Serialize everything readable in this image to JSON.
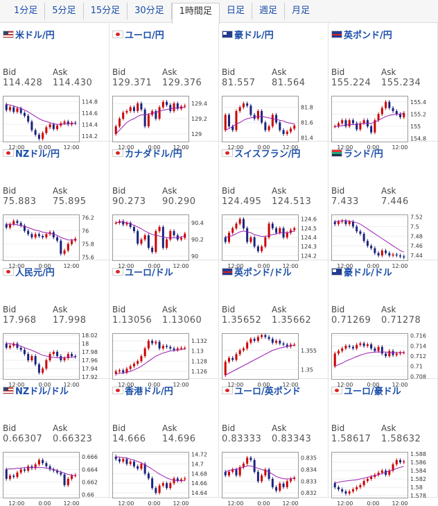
{
  "tabs": [
    {
      "label": "1分足",
      "active": false
    },
    {
      "label": "5分足",
      "active": false
    },
    {
      "label": "15分足",
      "active": false
    },
    {
      "label": "30分足",
      "active": false
    },
    {
      "label": "1時間足",
      "active": true
    },
    {
      "label": "日足",
      "active": false
    },
    {
      "label": "週足",
      "active": false
    },
    {
      "label": "月足",
      "active": false
    }
  ],
  "labels": {
    "bid": "Bid",
    "ask": "Ask"
  },
  "colors": {
    "up": "#cc0000",
    "down": "#1a237e",
    "ma": "#9b1fb0",
    "link": "#1a4ea8"
  },
  "pairs": [
    {
      "name": "米ドル/円",
      "flag": "us",
      "bid": "114.428",
      "ask": "114.430",
      "chart_data": {
        "type": "candlestick",
        "ylim": [
          114.1,
          114.9
        ],
        "yticks": [
          "114.8",
          "114.6",
          "114.4",
          "114.2"
        ],
        "xticks": [
          "12:00",
          "0:00",
          "12:00"
        ],
        "close": [
          114.65,
          114.7,
          114.62,
          114.68,
          114.6,
          114.55,
          114.45,
          114.3,
          114.22,
          114.15,
          114.25,
          114.35,
          114.4,
          114.32,
          114.38,
          114.42,
          114.45,
          114.4,
          114.43,
          114.42
        ],
        "ma": [
          114.75,
          114.74,
          114.72,
          114.7,
          114.68,
          114.65,
          114.62,
          114.58,
          114.54,
          114.5,
          114.47,
          114.45,
          114.43,
          114.41,
          114.4,
          114.4,
          114.41,
          114.41,
          114.42,
          114.42
        ]
      }
    },
    {
      "name": "ユーロ/円",
      "flag": "jp",
      "bid": "129.371",
      "ask": "129.376",
      "chart_data": {
        "type": "candlestick",
        "ylim": [
          128.9,
          129.5
        ],
        "yticks": [
          "129.4",
          "129.2",
          "129"
        ],
        "xticks": [
          "12:00",
          "0:00",
          "12:00"
        ],
        "close": [
          129.1,
          129.2,
          129.28,
          129.3,
          129.35,
          129.3,
          129.4,
          129.32,
          129.1,
          129.25,
          129.3,
          129.2,
          129.35,
          129.42,
          129.38,
          129.3,
          129.4,
          129.33,
          129.36,
          129.37
        ],
        "ma": [
          129.0,
          129.05,
          129.1,
          129.15,
          129.18,
          129.2,
          129.23,
          129.25,
          129.25,
          129.26,
          129.27,
          129.28,
          129.3,
          129.31,
          129.32,
          129.33,
          129.34,
          129.34,
          129.35,
          129.35
        ]
      }
    },
    {
      "name": "豪ドル/円",
      "flag": "au",
      "bid": "81.557",
      "ask": "81.564",
      "chart_data": {
        "type": "candlestick",
        "ylim": [
          81.35,
          81.95
        ],
        "yticks": [
          "81.8",
          "81.6",
          "81.4"
        ],
        "xticks": [
          "12:00",
          "0:00",
          "12:00"
        ],
        "close": [
          81.7,
          81.55,
          81.5,
          81.75,
          81.8,
          81.85,
          81.82,
          81.7,
          81.65,
          81.75,
          81.6,
          81.5,
          81.55,
          81.7,
          81.6,
          81.5,
          81.45,
          81.48,
          81.52,
          81.56
        ],
        "ma": [
          81.5,
          81.52,
          81.55,
          81.58,
          81.6,
          81.63,
          81.65,
          81.66,
          81.67,
          81.68,
          81.68,
          81.67,
          81.66,
          81.65,
          81.64,
          81.63,
          81.62,
          81.6,
          81.59,
          81.58
        ]
      }
    },
    {
      "name": "英ポンド/円",
      "flag": "gb",
      "bid": "155.224",
      "ask": "155.234",
      "chart_data": {
        "type": "candlestick",
        "ylim": [
          154.75,
          155.5
        ],
        "yticks": [
          "155.4",
          "155.2",
          "155",
          "154.8"
        ],
        "xticks": [
          "12:00",
          "0:00",
          "12:00"
        ],
        "close": [
          155.0,
          155.05,
          155.1,
          155.0,
          155.1,
          155.05,
          154.95,
          155.05,
          155.1,
          155.0,
          154.9,
          155.1,
          155.2,
          155.3,
          155.4,
          155.3,
          155.25,
          155.2,
          155.15,
          155.22
        ],
        "ma": [
          155.0,
          155.0,
          155.01,
          155.02,
          155.03,
          155.03,
          155.03,
          155.04,
          155.05,
          155.05,
          155.05,
          155.07,
          155.1,
          155.13,
          155.16,
          155.18,
          155.19,
          155.2,
          155.2,
          155.21
        ]
      }
    },
    {
      "name": "NZドル/円",
      "flag": "nz",
      "bid": "75.883",
      "ask": "75.895",
      "chart_data": {
        "type": "candlestick",
        "ylim": [
          75.55,
          76.25
        ],
        "yticks": [
          "76.2",
          "76",
          "75.8",
          "75.6"
        ],
        "xticks": [
          "12:00",
          "0:00",
          "12:00"
        ],
        "close": [
          76.05,
          76.1,
          76.15,
          76.12,
          76.08,
          76.0,
          75.95,
          75.9,
          75.95,
          75.92,
          75.9,
          75.95,
          75.98,
          75.9,
          75.85,
          75.65,
          75.7,
          75.8,
          75.85,
          75.88
        ],
        "ma": [
          76.1,
          76.1,
          76.1,
          76.09,
          76.08,
          76.07,
          76.05,
          76.03,
          76.01,
          76.0,
          75.98,
          75.97,
          75.96,
          75.95,
          75.93,
          75.9,
          75.88,
          75.86,
          75.86,
          75.86
        ]
      }
    },
    {
      "name": "カナダドル/円",
      "flag": "ca",
      "bid": "90.273",
      "ask": "90.290",
      "chart_data": {
        "type": "candlestick",
        "ylim": [
          89.95,
          90.5
        ],
        "yticks": [
          "90.4",
          "90.2",
          "90"
        ],
        "xticks": [
          "12:00",
          "0:00",
          "12:00"
        ],
        "close": [
          90.4,
          90.42,
          90.38,
          90.4,
          90.35,
          90.3,
          90.15,
          90.2,
          90.25,
          90.1,
          90.05,
          90.3,
          90.35,
          90.1,
          90.2,
          90.3,
          90.25,
          90.2,
          90.22,
          90.27
        ],
        "ma": [
          90.4,
          90.41,
          90.41,
          90.4,
          90.39,
          90.37,
          90.35,
          90.33,
          90.3,
          90.28,
          90.26,
          90.25,
          90.24,
          90.23,
          90.22,
          90.22,
          90.22,
          90.22,
          90.23,
          90.24
        ]
      }
    },
    {
      "name": "スイスフラン/円",
      "flag": "ch",
      "bid": "124.495",
      "ask": "124.513",
      "chart_data": {
        "type": "candlestick",
        "ylim": [
          124.15,
          124.65
        ],
        "yticks": [
          "124.6",
          "124.5",
          "124.4",
          "124.3",
          "124.2"
        ],
        "xticks": [
          "12:00",
          "0:00",
          "12:00"
        ],
        "close": [
          124.35,
          124.45,
          124.5,
          124.55,
          124.6,
          124.5,
          124.35,
          124.4,
          124.3,
          124.25,
          124.3,
          124.4,
          124.55,
          124.5,
          124.45,
          124.5,
          124.4,
          124.45,
          124.48,
          124.5
        ],
        "ma": [
          124.4,
          124.41,
          124.42,
          124.44,
          124.46,
          124.47,
          124.46,
          124.45,
          124.43,
          124.42,
          124.41,
          124.41,
          124.42,
          124.43,
          124.44,
          124.45,
          124.45,
          124.45,
          124.46,
          124.47
        ]
      }
    },
    {
      "name": "ランド/円",
      "flag": "za",
      "bid": "7.433",
      "ask": "7.446",
      "chart_data": {
        "type": "candlestick",
        "ylim": [
          7.43,
          7.525
        ],
        "yticks": [
          "7.52",
          "7.5",
          "7.48",
          "7.46",
          "7.44"
        ],
        "xticks": [
          "12:00",
          "0:00",
          "12:00"
        ],
        "close": [
          7.505,
          7.51,
          7.512,
          7.505,
          7.51,
          7.5,
          7.49,
          7.485,
          7.47,
          7.46,
          7.455,
          7.445,
          7.44,
          7.45,
          7.445,
          7.44,
          7.442,
          7.44,
          7.438,
          7.436
        ],
        "ma": [
          7.51,
          7.511,
          7.512,
          7.512,
          7.511,
          7.51,
          7.508,
          7.505,
          7.5,
          7.495,
          7.49,
          7.485,
          7.48,
          7.475,
          7.47,
          7.465,
          7.46,
          7.455,
          7.45,
          7.447
        ]
      }
    },
    {
      "name": "人民元/円",
      "flag": "cn",
      "bid": "17.968",
      "ask": "17.998",
      "chart_data": {
        "type": "candlestick",
        "ylim": [
          17.915,
          18.025
        ],
        "yticks": [
          "18.02",
          "18",
          "17.98",
          "17.96",
          "17.94",
          "17.92"
        ],
        "xticks": [
          "12:00",
          "0:00",
          "12:00"
        ],
        "close": [
          17.99,
          17.995,
          18.0,
          17.99,
          17.985,
          17.975,
          17.96,
          17.97,
          17.95,
          17.93,
          17.94,
          17.96,
          17.975,
          17.98,
          17.97,
          17.96,
          17.965,
          17.975,
          17.97,
          17.968
        ],
        "ma": [
          18.0,
          18.0,
          17.998,
          17.996,
          17.994,
          17.99,
          17.987,
          17.984,
          17.98,
          17.976,
          17.972,
          17.97,
          17.968,
          17.967,
          17.966,
          17.966,
          17.966,
          17.967,
          17.968,
          17.968
        ]
      }
    },
    {
      "name": "ユーロ/ドル",
      "flag": "eu",
      "bid": "1.13056",
      "ask": "1.13060",
      "chart_data": {
        "type": "candlestick",
        "ylim": [
          1.1245,
          1.1335
        ],
        "yticks": [
          "1.132",
          "1.13",
          "1.128",
          "1.126"
        ],
        "xticks": [
          "12:00",
          "0:00",
          "12:00"
        ],
        "close": [
          1.126,
          1.1262,
          1.1258,
          1.1265,
          1.127,
          1.1275,
          1.128,
          1.129,
          1.1305,
          1.132,
          1.1315,
          1.1318,
          1.1305,
          1.131,
          1.1308,
          1.1305,
          1.1302,
          1.1305,
          1.1306,
          1.1306
        ],
        "ma": [
          1.1255,
          1.1256,
          1.1257,
          1.1258,
          1.126,
          1.1263,
          1.1266,
          1.127,
          1.1275,
          1.128,
          1.1285,
          1.129,
          1.1293,
          1.1296,
          1.1298,
          1.13,
          1.1301,
          1.1302,
          1.1303,
          1.1304
        ]
      }
    },
    {
      "name": "英ポンド/ドル",
      "flag": "gb",
      "bid": "1.35652",
      "ask": "1.35662",
      "chart_data": {
        "type": "candlestick",
        "ylim": [
          1.3475,
          1.3595
        ],
        "yticks": [
          "1.355",
          "1.35"
        ],
        "xticks": [
          "12:00",
          "0:00",
          "12:00"
        ],
        "close": [
          1.352,
          1.353,
          1.3525,
          1.354,
          1.355,
          1.3555,
          1.357,
          1.358,
          1.3575,
          1.3585,
          1.359,
          1.3585,
          1.358,
          1.357,
          1.3575,
          1.3568,
          1.3565,
          1.356,
          1.3565,
          1.3565
        ],
        "ma": [
          1.3485,
          1.349,
          1.3495,
          1.35,
          1.3505,
          1.351,
          1.3515,
          1.352,
          1.3525,
          1.353,
          1.3535,
          1.354,
          1.3545,
          1.355,
          1.3553,
          1.3556,
          1.3558,
          1.356,
          1.3562,
          1.3563
        ]
      }
    },
    {
      "name": "豪ドル/ドル",
      "flag": "au",
      "bid": "0.71269",
      "ask": "0.71278",
      "chart_data": {
        "type": "candlestick",
        "ylim": [
          0.7075,
          0.7165
        ],
        "yticks": [
          "0.716",
          "0.714",
          "0.712",
          "0.71",
          "0.708"
        ],
        "xticks": [
          "12:00",
          "0:00",
          "12:00"
        ],
        "close": [
          0.7125,
          0.713,
          0.7135,
          0.714,
          0.7138,
          0.7135,
          0.7142,
          0.7145,
          0.714,
          0.7143,
          0.7135,
          0.713,
          0.7138,
          0.7125,
          0.712,
          0.713,
          0.7122,
          0.7125,
          0.7127,
          0.7127
        ],
        "ma": [
          0.71,
          0.7103,
          0.7106,
          0.711,
          0.7113,
          0.7116,
          0.7119,
          0.7122,
          0.7124,
          0.7126,
          0.7127,
          0.7128,
          0.7128,
          0.7128,
          0.7128,
          0.7127,
          0.7127,
          0.7127,
          0.7127,
          0.7127
        ]
      }
    },
    {
      "name": "NZドル/ドル",
      "flag": "us",
      "bid": "0.66307",
      "ask": "0.66323",
      "chart_data": {
        "type": "candlestick",
        "ylim": [
          0.6595,
          0.6668
        ],
        "yticks": [
          "0.666",
          "0.664",
          "0.662",
          "0.66"
        ],
        "xticks": [
          "12:00",
          "0:00",
          "12:00"
        ],
        "close": [
          0.6625,
          0.663,
          0.6628,
          0.6635,
          0.664,
          0.6638,
          0.6645,
          0.6642,
          0.6648,
          0.6655,
          0.665,
          0.6645,
          0.664,
          0.6638,
          0.6635,
          0.6632,
          0.6615,
          0.6625,
          0.663,
          0.6631
        ],
        "ma": [
          0.664,
          0.6641,
          0.6641,
          0.6642,
          0.6642,
          0.6643,
          0.6643,
          0.6643,
          0.6643,
          0.6643,
          0.6643,
          0.6642,
          0.6641,
          0.664,
          0.6638,
          0.6636,
          0.6634,
          0.6632,
          0.6631,
          0.663
        ]
      }
    },
    {
      "name": "香港ドル/円",
      "flag": "hk",
      "bid": "14.666",
      "ask": "14.696",
      "chart_data": {
        "type": "candlestick",
        "ylim": [
          14.63,
          14.725
        ],
        "yticks": [
          "14.72",
          "14.7",
          "14.68",
          "14.66",
          "14.64"
        ],
        "xticks": [
          "12:00",
          "0:00",
          "12:00"
        ],
        "close": [
          14.71,
          14.705,
          14.71,
          14.7,
          14.705,
          14.695,
          14.69,
          14.7,
          14.68,
          14.67,
          14.65,
          14.64,
          14.655,
          14.66,
          14.65,
          14.66,
          14.67,
          14.665,
          14.668,
          14.67
        ],
        "ma": [
          14.715,
          14.714,
          14.713,
          14.712,
          14.71,
          14.708,
          14.705,
          14.702,
          14.698,
          14.694,
          14.689,
          14.684,
          14.679,
          14.675,
          14.671,
          14.668,
          14.666,
          14.665,
          14.665,
          14.665
        ]
      }
    },
    {
      "name": "ユーロ/英ポンド",
      "flag": "eu",
      "bid": "0.83333",
      "ask": "0.83343",
      "chart_data": {
        "type": "candlestick",
        "ylim": [
          0.8316,
          0.8355
        ],
        "yticks": [
          "0.835",
          "0.834",
          "0.833",
          "0.832"
        ],
        "xticks": [
          "12:00",
          "0:00",
          "12:00"
        ],
        "close": [
          0.8335,
          0.8338,
          0.834,
          0.8335,
          0.8342,
          0.8345,
          0.835,
          0.8348,
          0.8338,
          0.833,
          0.8335,
          0.834,
          0.8332,
          0.8325,
          0.8322,
          0.8328,
          0.8325,
          0.833,
          0.8332,
          0.8333
        ],
        "ma": [
          0.8338,
          0.8339,
          0.834,
          0.834,
          0.8341,
          0.8342,
          0.8343,
          0.8343,
          0.8342,
          0.8341,
          0.834,
          0.8339,
          0.8338,
          0.8336,
          0.8334,
          0.8333,
          0.8332,
          0.8332,
          0.8332,
          0.8333
        ]
      }
    },
    {
      "name": "ユーロ/豪ドル",
      "flag": "eu",
      "bid": "1.58617",
      "ask": "1.58632",
      "chart_data": {
        "type": "candlestick",
        "ylim": [
          1.5775,
          1.5885
        ],
        "yticks": [
          "1.588",
          "1.586",
          "1.584",
          "1.582",
          "1.58",
          "1.578"
        ],
        "xticks": [
          "12:00",
          "0:00",
          "12:00"
        ],
        "close": [
          1.58,
          1.5795,
          1.579,
          1.5785,
          1.579,
          1.5795,
          1.58,
          1.5805,
          1.5815,
          1.582,
          1.5825,
          1.583,
          1.5835,
          1.584,
          1.583,
          1.584,
          1.5855,
          1.5865,
          1.586,
          1.5862
        ],
        "ma": [
          1.581,
          1.5812,
          1.5814,
          1.5815,
          1.5816,
          1.5817,
          1.5818,
          1.582,
          1.5822,
          1.5824,
          1.5826,
          1.5828,
          1.583,
          1.5833,
          1.5836,
          1.5839,
          1.5842,
          1.5845,
          1.5848,
          1.585
        ]
      }
    }
  ]
}
